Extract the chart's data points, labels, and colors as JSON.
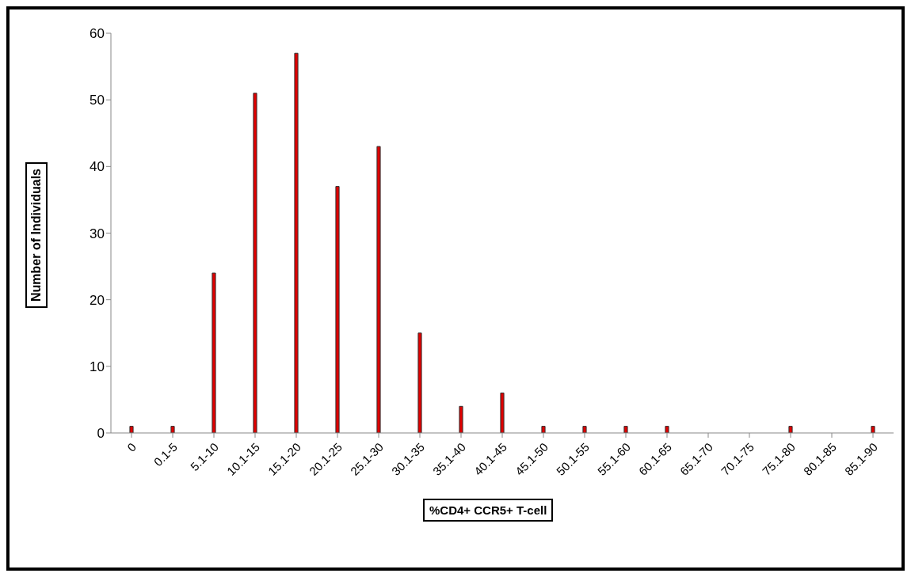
{
  "chart_data": {
    "type": "bar",
    "xlabel": "%CD4+ CCR5+ T-cell",
    "ylabel": "Number of Individuals",
    "categories": [
      "0",
      "0.1-5",
      "5.1-10",
      "10.1-15",
      "15.1-20",
      "20.1-25",
      "25.1-30",
      "30.1-35",
      "35.1-40",
      "40.1-45",
      "45.1-50",
      "50.1-55",
      "55.1-60",
      "60.1-65",
      "65.1-70",
      "70.1-75",
      "75.1-80",
      "80.1-85",
      "85.1-90"
    ],
    "values": [
      1,
      1,
      24,
      51,
      57,
      37,
      43,
      15,
      4,
      6,
      1,
      1,
      1,
      1,
      0,
      0,
      1,
      0,
      1
    ],
    "color": "#e00000",
    "ylim": [
      0,
      60
    ],
    "yticks": [
      0,
      10,
      20,
      30,
      40,
      50,
      60
    ],
    "grid": false,
    "legend": false
  }
}
